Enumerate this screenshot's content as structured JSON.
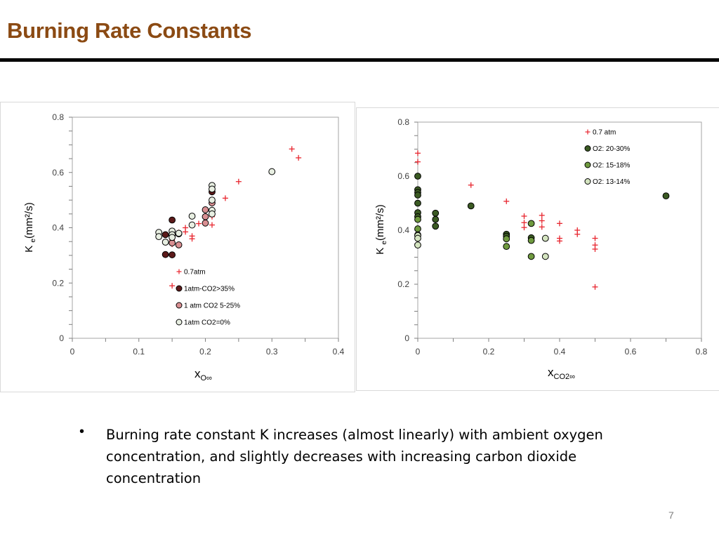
{
  "slide": {
    "title": "Burning Rate Constants",
    "title_color": "#8b4a13",
    "bullet_glyph": "•",
    "bullet": "Burning rate constant K increases (almost linearly) with ambient oxygen concentration, and slightly decreases with increasing carbon dioxide concentration",
    "page_number": "7"
  },
  "chart_data": [
    {
      "type": "scatter",
      "title": "",
      "xlabel_main": "X",
      "xlabel_sub": "O∞",
      "ylabel_main": "K",
      "ylabel_sub": "e",
      "ylabel_rest": "(mm²/s)",
      "xlim": [
        0,
        0.4
      ],
      "ylim": [
        0,
        0.8
      ],
      "xticks": [
        0,
        0.1,
        0.2,
        0.3,
        0.4
      ],
      "xtick_labels": [
        "0",
        "0.1",
        "0.2",
        "0.3",
        "0.4"
      ],
      "yticks": [
        0,
        0.2,
        0.4,
        0.6,
        0.8
      ],
      "ytick_labels": [
        "0",
        "0.2",
        "0.4",
        "0.6",
        "0.8"
      ],
      "grid": false,
      "legend_position": "bottom-right",
      "series": [
        {
          "name": "0.7atm",
          "marker": "plus",
          "color": "#e8262f",
          "points": [
            [
              0.33,
              0.685
            ],
            [
              0.34,
              0.653
            ],
            [
              0.25,
              0.567
            ],
            [
              0.23,
              0.507
            ],
            [
              0.21,
              0.465
            ],
            [
              0.21,
              0.44
            ],
            [
              0.21,
              0.41
            ],
            [
              0.19,
              0.415
            ],
            [
              0.18,
              0.37
            ],
            [
              0.18,
              0.36
            ],
            [
              0.17,
              0.4
            ],
            [
              0.17,
              0.385
            ],
            [
              0.16,
              0.383
            ],
            [
              0.15,
              0.355
            ],
            [
              0.15,
              0.34
            ],
            [
              0.15,
              0.19
            ]
          ]
        },
        {
          "name": "1atm-CO2>35%",
          "marker": "circle",
          "color": "#5c1a1a",
          "points": [
            [
              0.15,
              0.428
            ],
            [
              0.14,
              0.375
            ],
            [
              0.15,
              0.37
            ],
            [
              0.14,
              0.303
            ],
            [
              0.15,
              0.302
            ],
            [
              0.21,
              0.53
            ]
          ]
        },
        {
          "name": "1 atm CO2 5-25%",
          "marker": "circle",
          "color": "#d98f92",
          "points": [
            [
              0.2,
              0.465
            ],
            [
              0.2,
              0.44
            ],
            [
              0.2,
              0.417
            ],
            [
              0.16,
              0.378
            ],
            [
              0.15,
              0.345
            ],
            [
              0.16,
              0.338
            ],
            [
              0.21,
              0.49
            ]
          ]
        },
        {
          "name": "1atm CO2=0%",
          "marker": "circle",
          "color": "#e8efe2",
          "points": [
            [
              0.3,
              0.603
            ],
            [
              0.21,
              0.553
            ],
            [
              0.21,
              0.54
            ],
            [
              0.21,
              0.5
            ],
            [
              0.21,
              0.463
            ],
            [
              0.21,
              0.45
            ],
            [
              0.18,
              0.442
            ],
            [
              0.18,
              0.41
            ],
            [
              0.13,
              0.383
            ],
            [
              0.13,
              0.368
            ],
            [
              0.15,
              0.388
            ],
            [
              0.15,
              0.375
            ],
            [
              0.15,
              0.365
            ],
            [
              0.16,
              0.38
            ],
            [
              0.14,
              0.348
            ]
          ]
        }
      ]
    },
    {
      "type": "scatter",
      "title": "",
      "xlabel_main": "X",
      "xlabel_sub": "CO2∞",
      "ylabel_main": "K",
      "ylabel_sub": "e",
      "ylabel_rest": "(mm²/s)",
      "xlim": [
        0,
        0.8
      ],
      "ylim": [
        0,
        0.8
      ],
      "xticks": [
        0,
        0.2,
        0.4,
        0.6,
        0.8
      ],
      "xtick_labels": [
        "0",
        "0.2",
        "0.4",
        "0.6",
        "0.8"
      ],
      "yticks": [
        0,
        0.2,
        0.4,
        0.6,
        0.8
      ],
      "ytick_labels": [
        "0",
        "0.2",
        "0.4",
        "0.6",
        "0.8"
      ],
      "grid": false,
      "legend_position": "top-right",
      "series": [
        {
          "name": "0.7 atm",
          "marker": "plus",
          "color": "#e8262f",
          "points": [
            [
              0,
              0.685
            ],
            [
              0,
              0.653
            ],
            [
              0.15,
              0.567
            ],
            [
              0.25,
              0.507
            ],
            [
              0.3,
              0.452
            ],
            [
              0.3,
              0.428
            ],
            [
              0.3,
              0.41
            ],
            [
              0.35,
              0.455
            ],
            [
              0.35,
              0.435
            ],
            [
              0.35,
              0.412
            ],
            [
              0.4,
              0.425
            ],
            [
              0.4,
              0.37
            ],
            [
              0.4,
              0.36
            ],
            [
              0.45,
              0.4
            ],
            [
              0.45,
              0.385
            ],
            [
              0.5,
              0.37
            ],
            [
              0.5,
              0.345
            ],
            [
              0.5,
              0.33
            ],
            [
              0.5,
              0.19
            ]
          ]
        },
        {
          "name": "O2: 20-30%",
          "marker": "circle",
          "color": "#3b5a23",
          "points": [
            [
              0,
              0.6
            ],
            [
              0,
              0.55
            ],
            [
              0,
              0.54
            ],
            [
              0,
              0.53
            ],
            [
              0,
              0.5
            ],
            [
              0,
              0.465
            ],
            [
              0,
              0.45
            ],
            [
              0.05,
              0.463
            ],
            [
              0.05,
              0.44
            ],
            [
              0.05,
              0.415
            ],
            [
              0.15,
              0.49
            ],
            [
              0.25,
              0.385
            ],
            [
              0.25,
              0.378
            ],
            [
              0.32,
              0.372
            ],
            [
              0.7,
              0.527
            ]
          ]
        },
        {
          "name": "O2: 15-18%",
          "marker": "circle",
          "color": "#6f9a3f",
          "points": [
            [
              0,
              0.44
            ],
            [
              0,
              0.405
            ],
            [
              0,
              0.383
            ],
            [
              0.25,
              0.368
            ],
            [
              0.25,
              0.34
            ],
            [
              0.32,
              0.425
            ],
            [
              0.32,
              0.362
            ],
            [
              0.32,
              0.303
            ]
          ]
        },
        {
          "name": "O2: 13-14%",
          "marker": "circle",
          "color": "#d4e4c0",
          "points": [
            [
              0,
              0.38
            ],
            [
              0,
              0.37
            ],
            [
              0,
              0.345
            ],
            [
              0.36,
              0.37
            ],
            [
              0.36,
              0.303
            ]
          ]
        }
      ]
    }
  ]
}
